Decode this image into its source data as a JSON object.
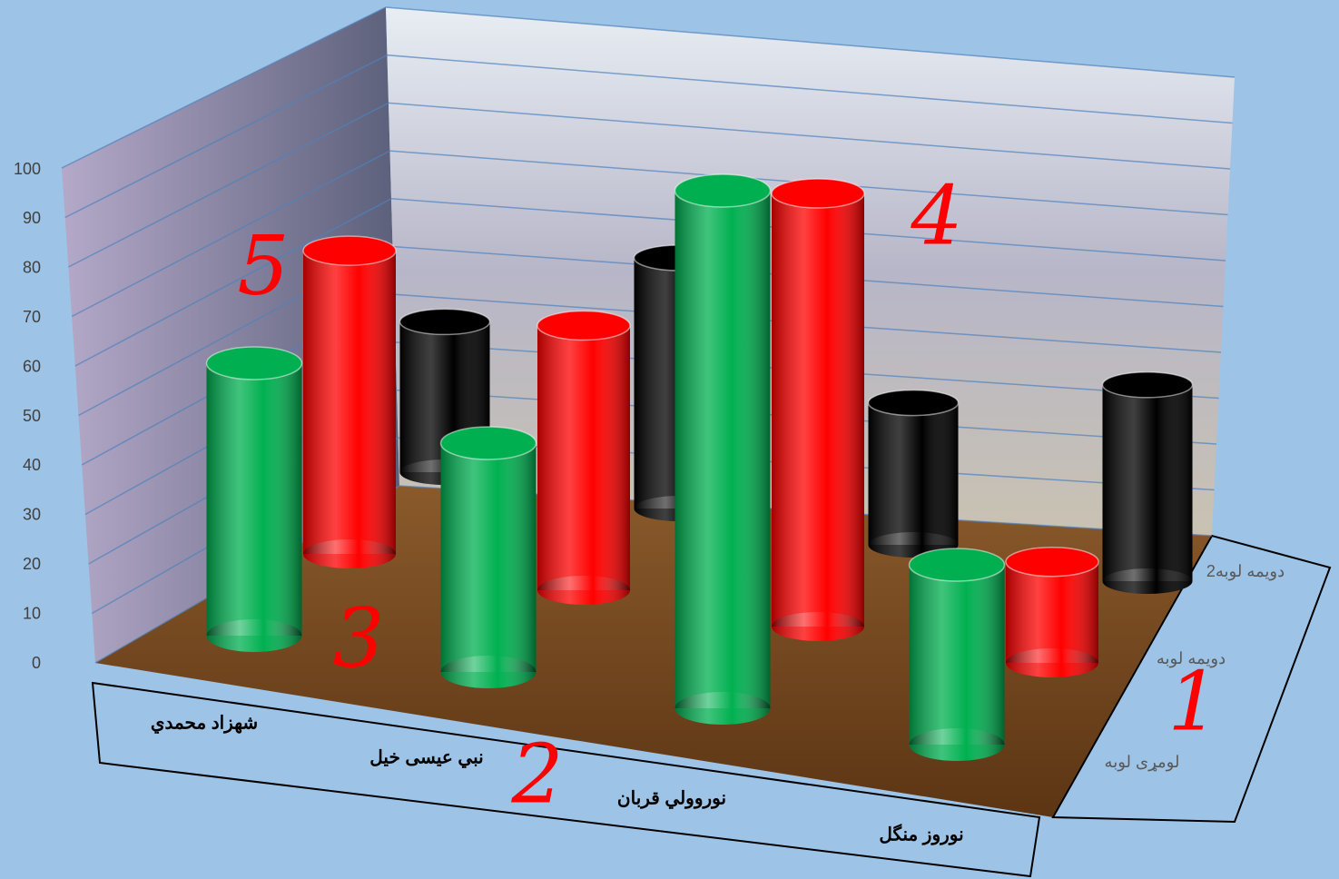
{
  "chart_data": {
    "type": "cylinder3d",
    "categories": [
      "شهزاد محمدي",
      "نبي عيسى خيل",
      "نوروولي قربان",
      "نوروز منگل"
    ],
    "series": [
      {
        "name": "لومړی لوبه",
        "color": "#00b050",
        "values": [
          50,
          42,
          95,
          33
        ]
      },
      {
        "name": "دويمه لوبه",
        "color": "#ff0000",
        "values": [
          63,
          55,
          90,
          21
        ]
      },
      {
        "name": "دويمه لوبه2",
        "color": "#000000",
        "values": [
          36,
          60,
          34,
          47
        ]
      }
    ],
    "ylim": [
      0,
      100
    ],
    "yticks": [
      0,
      10,
      20,
      30,
      40,
      50,
      60,
      70,
      80,
      90,
      100
    ],
    "grid": true,
    "annotations": [
      "5",
      "4",
      "3",
      "2",
      "1"
    ]
  }
}
